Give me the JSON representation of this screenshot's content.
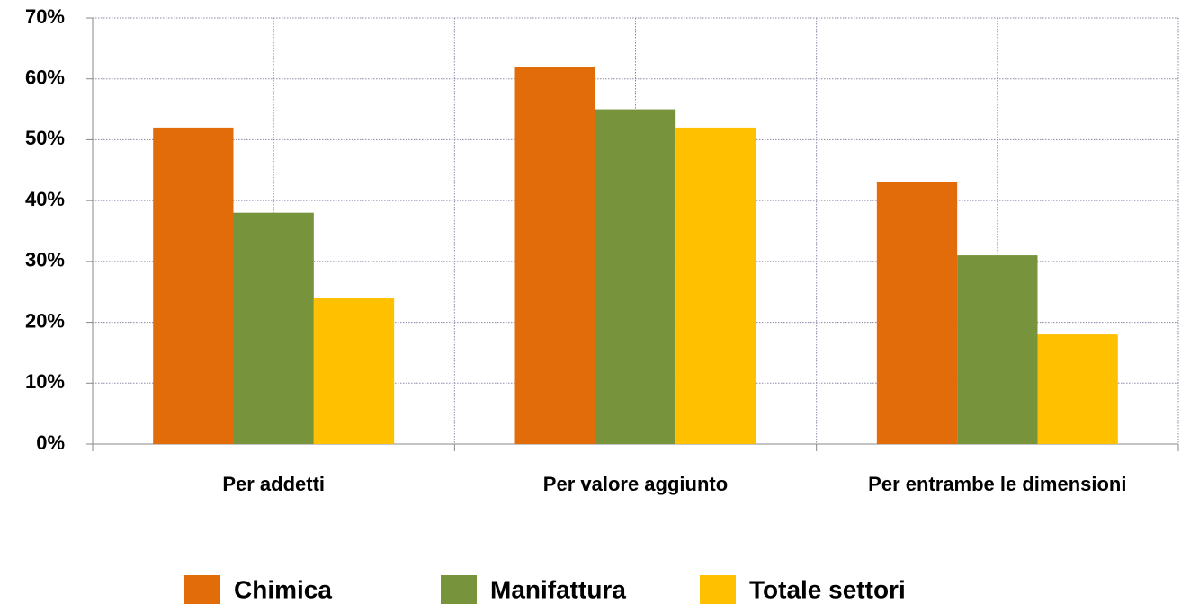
{
  "chart_data": {
    "type": "bar",
    "categories": [
      "Per addetti",
      "Per valore aggiunto",
      "Per entrambe le dimensioni"
    ],
    "series": [
      {
        "name": "Chimica",
        "color": "#e36c0a",
        "values": [
          52,
          62,
          43
        ]
      },
      {
        "name": "Manifattura",
        "color": "#77933c",
        "values": [
          38,
          55,
          31
        ]
      },
      {
        "name": "Totale settori",
        "color": "#ffc000",
        "values": [
          24,
          52,
          18
        ]
      }
    ],
    "ylim": [
      0,
      70
    ],
    "yticks": [
      {
        "value": 0,
        "label": "0%"
      },
      {
        "value": 10,
        "label": "10%"
      },
      {
        "value": 20,
        "label": "20%"
      },
      {
        "value": 30,
        "label": "30%"
      },
      {
        "value": 40,
        "label": "40%"
      },
      {
        "value": 50,
        "label": "50%"
      },
      {
        "value": 60,
        "label": "60%"
      },
      {
        "value": 70,
        "label": "70%"
      }
    ],
    "grid": true,
    "legend": "bottom"
  }
}
